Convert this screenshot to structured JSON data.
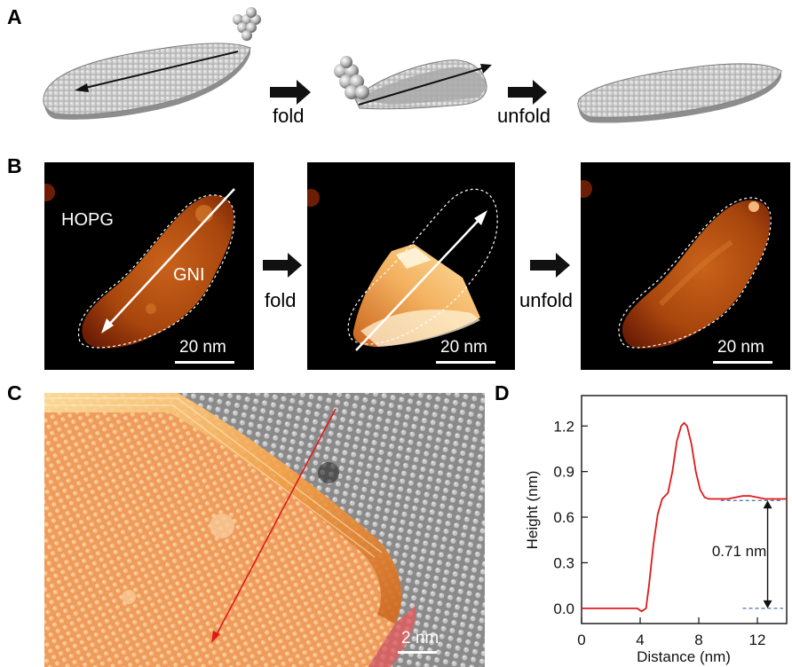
{
  "panel_labels": {
    "a": "A",
    "b": "B",
    "c": "C",
    "d": "D"
  },
  "panel_a": {
    "fold_label": "fold",
    "unfold_label": "unfold"
  },
  "panel_b": {
    "fold_label": "fold",
    "unfold_label": "unfold",
    "substrate_label": "HOPG",
    "island_label": "GNI",
    "scale_labels": [
      "20 nm",
      "20 nm",
      "20 nm"
    ]
  },
  "panel_c": {
    "scale_label": "2 nm"
  },
  "panel_d": {
    "annotation": "0.71 nm"
  },
  "colors": {
    "profile": "#e0191b",
    "reference_dash": "#1f4e9c",
    "afm_bright": "#fde3a3",
    "afm_mid": "#c9621a",
    "afm_dark": "#6e1d05"
  },
  "chart_data": {
    "type": "line",
    "xlabel": "Distance (nm)",
    "ylabel": "Height (nm)",
    "xlim": [
      0,
      14
    ],
    "ylim": [
      -0.1,
      1.4
    ],
    "xticks": [
      0,
      4,
      8,
      12
    ],
    "yticks": [
      0.0,
      0.3,
      0.6,
      0.9,
      1.2
    ],
    "ytick_labels": [
      "0.0",
      "0.3",
      "0.6",
      "0.9",
      "1.2"
    ],
    "series": [
      {
        "x": [
          0,
          1,
          2,
          3,
          3.8,
          4.1,
          4.4,
          4.6,
          4.9,
          5.2,
          5.5,
          5.9,
          6.2,
          6.5,
          6.8,
          7.0,
          7.2,
          7.5,
          7.8,
          8.1,
          8.4,
          8.7,
          9.0,
          9.5,
          10,
          10.5,
          11,
          11.5,
          12,
          12.5,
          13,
          14
        ],
        "y": [
          0.0,
          0.0,
          0.0,
          0.0,
          0.0,
          -0.02,
          0.0,
          0.15,
          0.42,
          0.62,
          0.72,
          0.76,
          0.9,
          1.1,
          1.2,
          1.22,
          1.2,
          1.08,
          0.9,
          0.78,
          0.73,
          0.72,
          0.72,
          0.72,
          0.72,
          0.73,
          0.74,
          0.74,
          0.73,
          0.72,
          0.72,
          0.72
        ]
      }
    ],
    "reference_levels": [
      0.0,
      0.71
    ],
    "step_height": 0.71
  }
}
